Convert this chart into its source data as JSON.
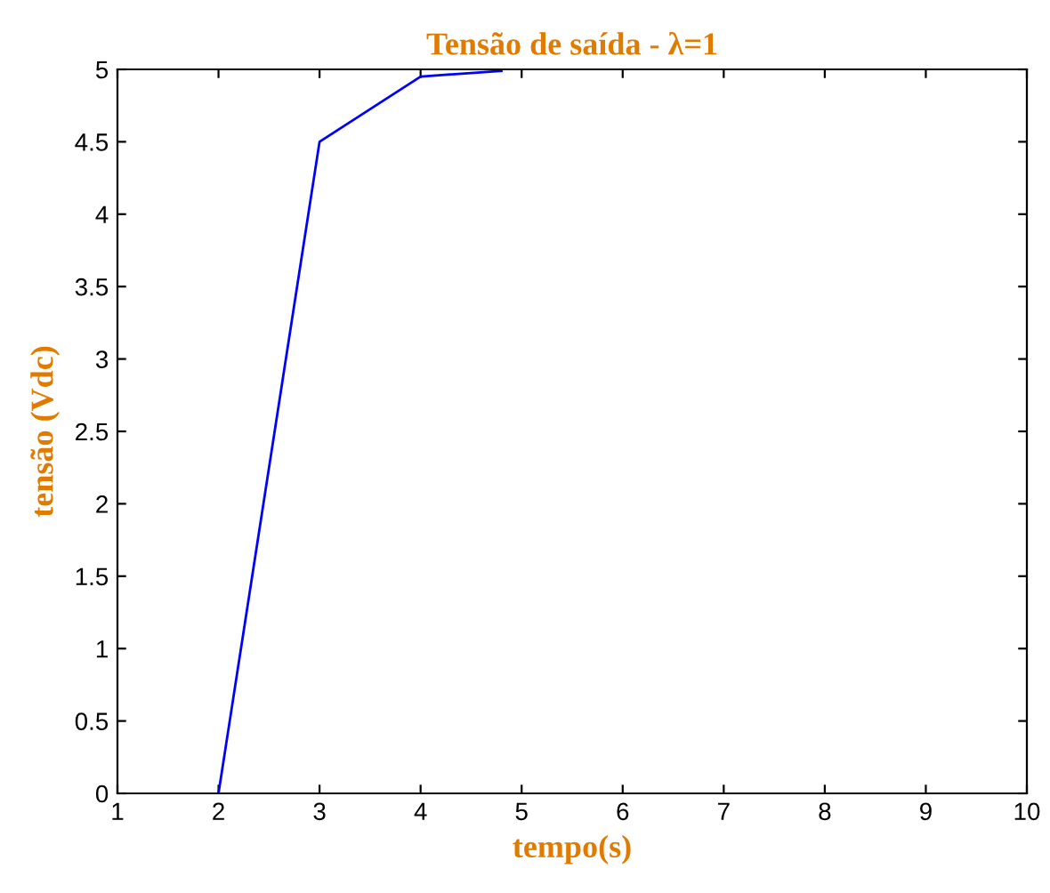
{
  "chart_data": {
    "type": "line",
    "title": "Tensão de saída - λ=1",
    "xlabel": "tempo(s)",
    "ylabel": "tensão (Vdc)",
    "series": [
      {
        "color": "#0000ff",
        "x": [
          2,
          3,
          4,
          4.8
        ],
        "values": [
          0,
          4.5,
          4.95,
          4.99
        ]
      }
    ],
    "xlim": [
      1,
      10
    ],
    "ylim": [
      0,
      5
    ],
    "xticks": [
      1,
      2,
      3,
      4,
      5,
      6,
      7,
      8,
      9,
      10
    ],
    "yticks": [
      0,
      0.5,
      1,
      1.5,
      2,
      2.5,
      3,
      3.5,
      4,
      4.5,
      5
    ],
    "grid": false,
    "legend": false,
    "marker": "none",
    "line_style": "solid"
  }
}
